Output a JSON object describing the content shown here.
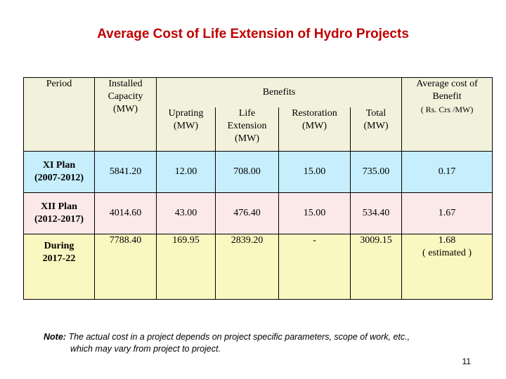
{
  "title": "Average Cost of  Life Extension of Hydro Projects",
  "headers": {
    "period": "Period",
    "installed_capacity": [
      "Installed",
      "Capacity",
      "(MW)"
    ],
    "benefits": "Benefits",
    "uprating": [
      "Uprating",
      "(MW)"
    ],
    "life_extension": [
      "Life",
      "Extension",
      "(MW)"
    ],
    "restoration": [
      "Restoration",
      "(MW)"
    ],
    "total": [
      "Total",
      "(MW)"
    ],
    "avg_cost": [
      "Average cost of",
      "Benefit"
    ],
    "avg_cost_unit": "( Rs. Crs /MW)"
  },
  "rows": [
    {
      "period": [
        "XI Plan",
        "(2007-2012)"
      ],
      "installed": "5841.20",
      "uprating": "12.00",
      "life_extension": "708.00",
      "restoration": "15.00",
      "total": "735.00",
      "avg_cost": [
        "0.17"
      ]
    },
    {
      "period": [
        "XII Plan",
        "(2012-2017)"
      ],
      "installed": "4014.60",
      "uprating": "43.00",
      "life_extension": "476.40",
      "restoration": "15.00",
      "total": "534.40",
      "avg_cost": [
        "1.67"
      ]
    },
    {
      "period": [
        "During",
        "2017-22"
      ],
      "installed": "7788.40",
      "uprating": "169.95",
      "life_extension": "2839.20",
      "restoration": "-",
      "total": "3009.15",
      "avg_cost": [
        "1.68",
        "( estimated )"
      ]
    }
  ],
  "note": {
    "label": "Note:",
    "line1": "The actual cost in a project depends on project specific parameters, scope of work, etc.,",
    "line2": "which may vary from project to project."
  },
  "page_number": "11"
}
